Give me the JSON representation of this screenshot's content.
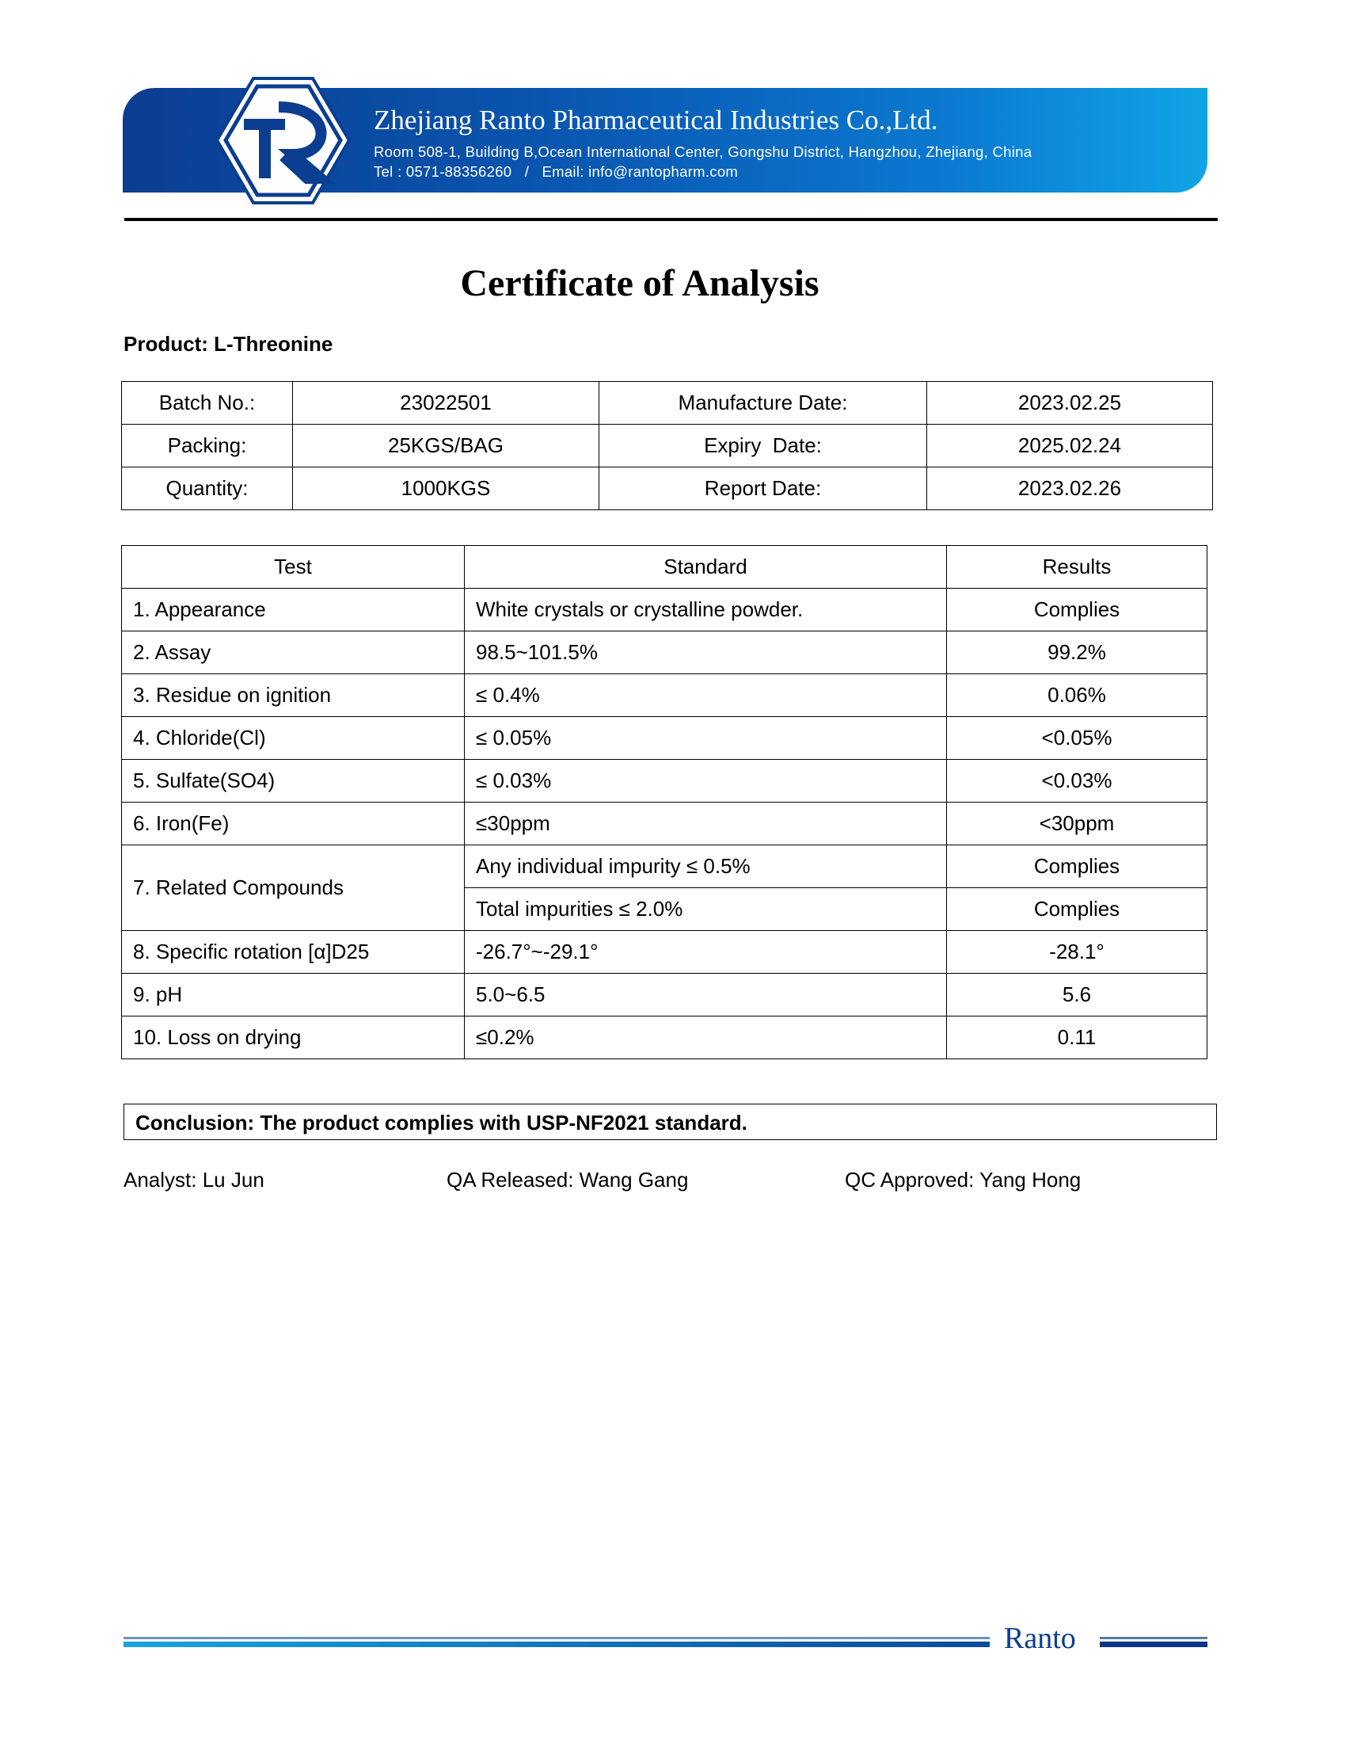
{
  "header": {
    "company": "Zhejiang Ranto Pharmaceutical Industries Co.,Ltd.",
    "address": "Room 508-1, Building B,Ocean International Center, Gongshu District, Hangzhou, Zhejiang, China",
    "contact": "Tel : 0571-88356260   /   Email: info@rantopharm.com",
    "logo_letters": "TR",
    "brand_color": "#0b3d91"
  },
  "title": "Certificate of Analysis",
  "product": "Product: L-Threonine",
  "info": [
    [
      "Batch No.:",
      "23022501",
      "Manufacture Date:",
      "2023.02.25"
    ],
    [
      "Packing:",
      "25KGS/BAG",
      "Expiry  Date:",
      "2025.02.24"
    ],
    [
      "Quantity:",
      "1000KGS",
      "Report Date:",
      "2023.02.26"
    ]
  ],
  "tests": {
    "headers": [
      "Test",
      "Standard",
      "Results"
    ],
    "rows": [
      [
        "1. Appearance",
        "White crystals or crystalline powder.",
        "Complies"
      ],
      [
        "2. Assay",
        "98.5~101.5%",
        "99.2%"
      ],
      [
        "3. Residue on ignition",
        "≤ 0.4%",
        "0.06%"
      ],
      [
        "4. Chloride(Cl)",
        "≤ 0.05%",
        "<0.05%"
      ],
      [
        "5. Sulfate(SO4)",
        "≤ 0.03%",
        "<0.03%"
      ],
      [
        "6. Iron(Fe)",
        "≤30ppm",
        "<30ppm"
      ]
    ],
    "related": {
      "test": "7. Related Compounds",
      "sub": [
        [
          "Any individual impurity ≤ 0.5%",
          "Complies"
        ],
        [
          "Total impurities ≤ 2.0%",
          "Complies"
        ]
      ]
    },
    "rows2": [
      [
        "8. Specific rotation [α]D25",
        "-26.7°~-29.1°",
        "-28.1°"
      ],
      [
        "9. pH",
        "5.0~6.5",
        "5.6"
      ],
      [
        "10. Loss on drying",
        "≤0.2%",
        "0.11"
      ]
    ]
  },
  "conclusion": "Conclusion: The product complies with USP-NF2021 standard.",
  "signatures": [
    "Analyst: Lu Jun",
    "QA Released: Wang Gang",
    "QC Approved: Yang Hong"
  ],
  "footer": {
    "brand": "Ranto"
  }
}
